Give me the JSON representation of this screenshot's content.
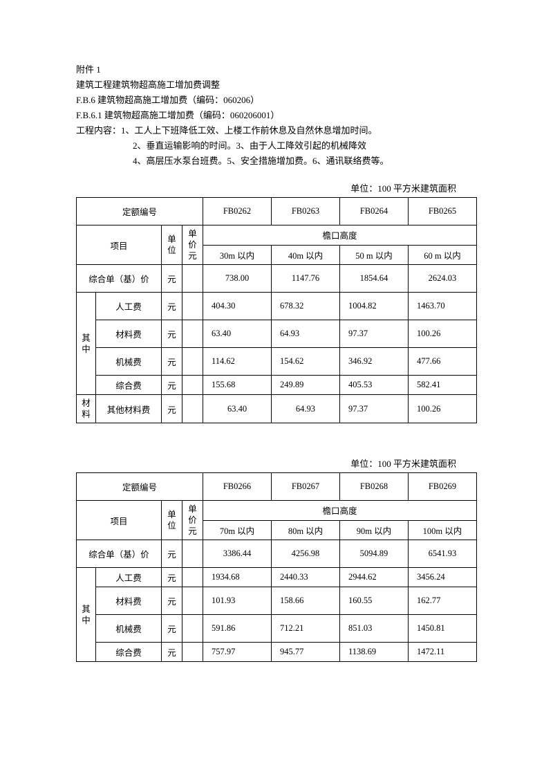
{
  "header": {
    "attachment": "附件 1",
    "title": "建筑工程建筑物超高施工增加费调整",
    "section1": "F.B.6 建筑物超高施工增加费（编码：060206）",
    "section2": "F.B.6.1 建筑物超高施工增加费（编码：060206001）",
    "content_label": "工程内容：",
    "content_line1": "1、工人上下班降低工效、上楼工作前休息及自然休息增加时间。",
    "content_line2": "2、垂直运输影响的时间。3、由于人工降效引起的机械降效",
    "content_line3": "4、高层压水泵台班费。5、安全措施增加费。6、通讯联络费等。"
  },
  "unit_label": "单位：100 平方米建筑面积",
  "labels": {
    "quota_code": "定额编号",
    "item": "项目",
    "unit_header": "单位",
    "price_header": "单价元",
    "eaves": "檐口高度",
    "base_price": "综合单（基）价",
    "yuan": "元",
    "qizhong": "其中",
    "cailiao": "材料",
    "labor": "人工费",
    "material_fee": "材料费",
    "machine": "机械费",
    "comp": "综合费",
    "other_mat": "其他材料费"
  },
  "table1": {
    "codes": [
      "FB0262",
      "FB0263",
      "FB0264",
      "FB0265"
    ],
    "ranges": [
      "30m 以内",
      "40m 以内",
      "50 m 以内",
      "60 m 以内"
    ],
    "base": [
      "738.00",
      "1147.76",
      "1854.64",
      "2624.03"
    ],
    "labor": [
      "404.30",
      "678.32",
      "1004.82",
      "1463.70"
    ],
    "material": [
      "63.40",
      "64.93",
      "97.37",
      "100.26"
    ],
    "machine": [
      "114.62",
      "154.62",
      "346.92",
      "477.66"
    ],
    "comp": [
      "155.68",
      "249.89",
      "405.53",
      "582.41"
    ],
    "other": [
      "63.40",
      "64.93",
      "97.37",
      "100.26"
    ]
  },
  "table2": {
    "codes": [
      "FB0266",
      "FB0267",
      "FB0268",
      "FB0269"
    ],
    "ranges": [
      "70m 以内",
      "80m 以内",
      "90m 以内",
      "100m 以内"
    ],
    "base": [
      "3386.44",
      "4256.98",
      "5094.89",
      "6541.93"
    ],
    "labor": [
      "1934.68",
      "2440.33",
      "2944.62",
      "3456.24"
    ],
    "material": [
      "101.93",
      "158.66",
      "160.55",
      "162.77"
    ],
    "machine": [
      "591.86",
      "712.21",
      "851.03",
      "1450.81"
    ],
    "comp": [
      "757.97",
      "945.77",
      "1138.69",
      "1472.11"
    ]
  }
}
